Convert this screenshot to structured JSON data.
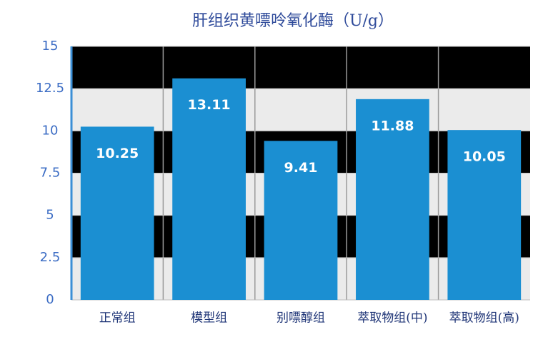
{
  "chart_data": {
    "type": "bar",
    "title": "肝组织黄嘌呤氧化酶（U/g）",
    "categories": [
      "正常组",
      "模型组",
      "别嘌醇组",
      "萃取物组(中)",
      "萃取物组(高)"
    ],
    "values": [
      10.25,
      13.11,
      9.41,
      11.88,
      10.05
    ],
    "color": "#1b8fd2",
    "ylim": [
      0,
      15
    ],
    "yticks": [
      0,
      2.5,
      5,
      7.5,
      10,
      12.5,
      15
    ],
    "grid": true
  }
}
